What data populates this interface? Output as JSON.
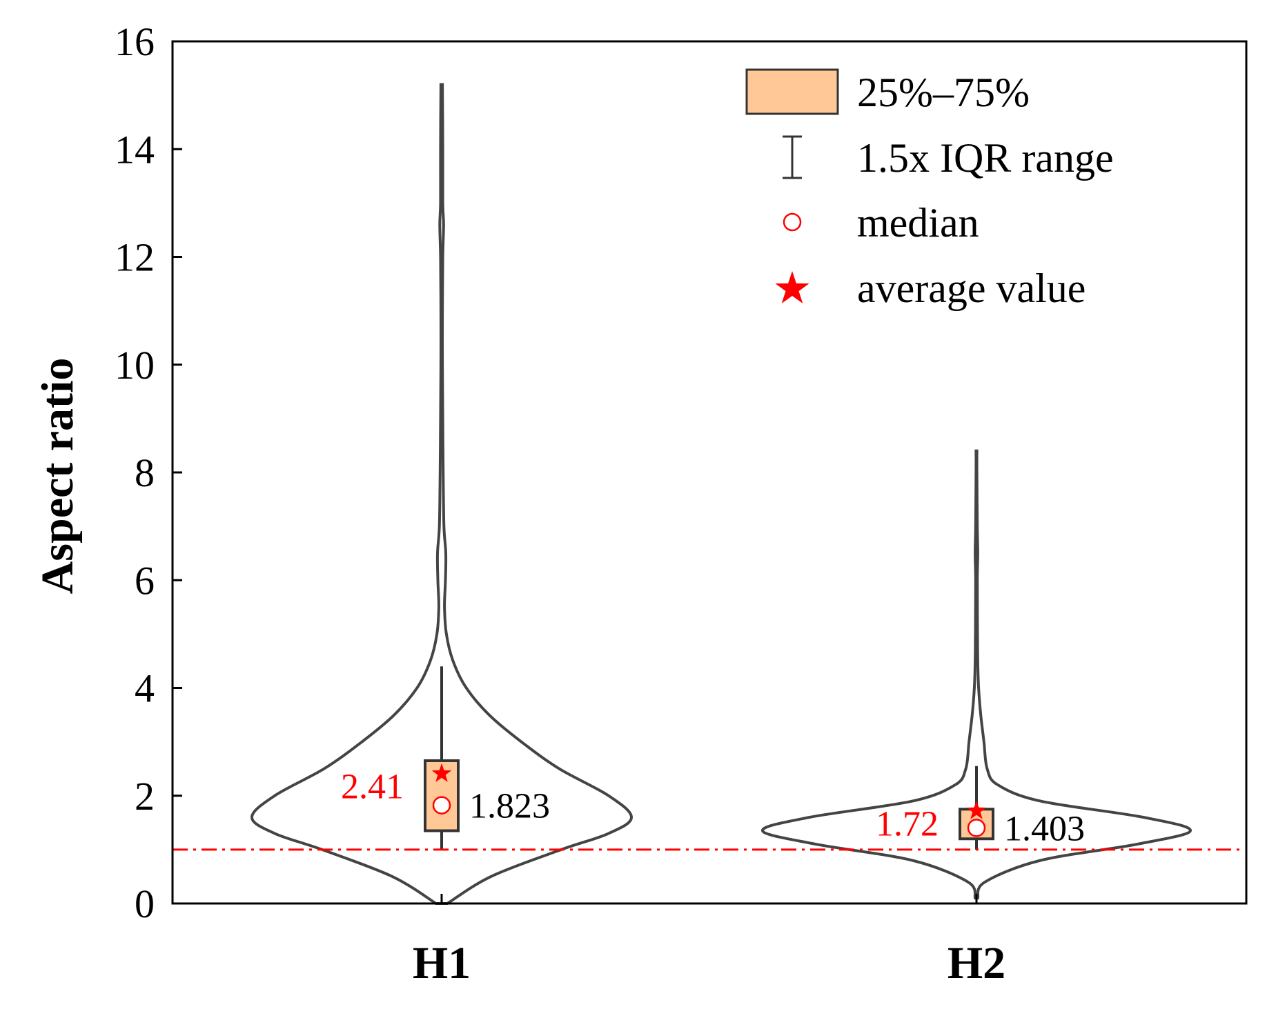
{
  "chart_data": {
    "type": "violin",
    "categories": [
      "H1",
      "H2"
    ],
    "ylabel": "Aspect ratio",
    "xlabel": "",
    "ylim": [
      0,
      16
    ],
    "yticks": [
      "0",
      "2",
      "4",
      "6",
      "8",
      "10",
      "12",
      "14",
      "16"
    ],
    "reference_line": {
      "value": 1.0,
      "style": "dash-dot",
      "color": "#ff0000"
    },
    "series": [
      {
        "name": "H1",
        "min": 0.0,
        "max": 15.2,
        "q1": 1.35,
        "q3": 2.65,
        "whisker_low": 1.0,
        "whisker_high": 4.4,
        "median": 1.823,
        "mean": 2.41,
        "median_label": "1.823",
        "mean_label": "2.41",
        "density": [
          [
            0,
            0.03
          ],
          [
            0.5,
            0.26
          ],
          [
            1.0,
            0.63
          ],
          [
            1.3,
            0.88
          ],
          [
            1.6,
            1.0
          ],
          [
            2.0,
            0.88
          ],
          [
            2.5,
            0.62
          ],
          [
            3.0,
            0.42
          ],
          [
            3.5,
            0.25
          ],
          [
            4.0,
            0.13
          ],
          [
            4.5,
            0.06
          ],
          [
            5.0,
            0.025
          ],
          [
            5.5,
            0.015
          ],
          [
            6.0,
            0.02
          ],
          [
            6.5,
            0.022
          ],
          [
            7.0,
            0.012
          ],
          [
            8.0,
            0.008
          ],
          [
            9.0,
            0.006
          ],
          [
            10.0,
            0.004
          ],
          [
            11.0,
            0.004
          ],
          [
            12.0,
            0.006
          ],
          [
            12.6,
            0.01
          ],
          [
            13.0,
            0.006
          ],
          [
            14.0,
            0.006
          ],
          [
            15.2,
            0.004
          ]
        ]
      },
      {
        "name": "H2",
        "min": 0.1,
        "max": 8.4,
        "q1": 1.2,
        "q3": 1.75,
        "whisker_low": 1.0,
        "whisker_high": 2.55,
        "median": 1.403,
        "mean": 1.72,
        "median_label": "1.403",
        "mean_label": "1.72",
        "density": [
          [
            0.1,
            0.006
          ],
          [
            0.4,
            0.04
          ],
          [
            0.8,
            0.3
          ],
          [
            1.1,
            0.75
          ],
          [
            1.35,
            1.0
          ],
          [
            1.6,
            0.78
          ],
          [
            1.9,
            0.3
          ],
          [
            2.2,
            0.1
          ],
          [
            2.5,
            0.05
          ],
          [
            3.0,
            0.035
          ],
          [
            3.5,
            0.02
          ],
          [
            4.0,
            0.01
          ],
          [
            4.5,
            0.006
          ],
          [
            5.0,
            0.005
          ],
          [
            6.0,
            0.004
          ],
          [
            6.5,
            0.006
          ],
          [
            7.0,
            0.004
          ],
          [
            8.0,
            0.002
          ],
          [
            8.4,
            0.002
          ]
        ]
      }
    ],
    "legend": {
      "position": "top-right",
      "items": [
        {
          "key": "box",
          "label": "25%–75%"
        },
        {
          "key": "whisker",
          "label": "1.5x IQR range"
        },
        {
          "key": "median",
          "label": "median"
        },
        {
          "key": "mean",
          "label": "average value"
        }
      ]
    },
    "colors": {
      "violin_stroke": "#444444",
      "box_fill": "#ffc896",
      "box_stroke": "#333333",
      "median_marker": "#ff0000",
      "mean_marker": "#ff0000",
      "reference_line": "#ff0000"
    }
  }
}
